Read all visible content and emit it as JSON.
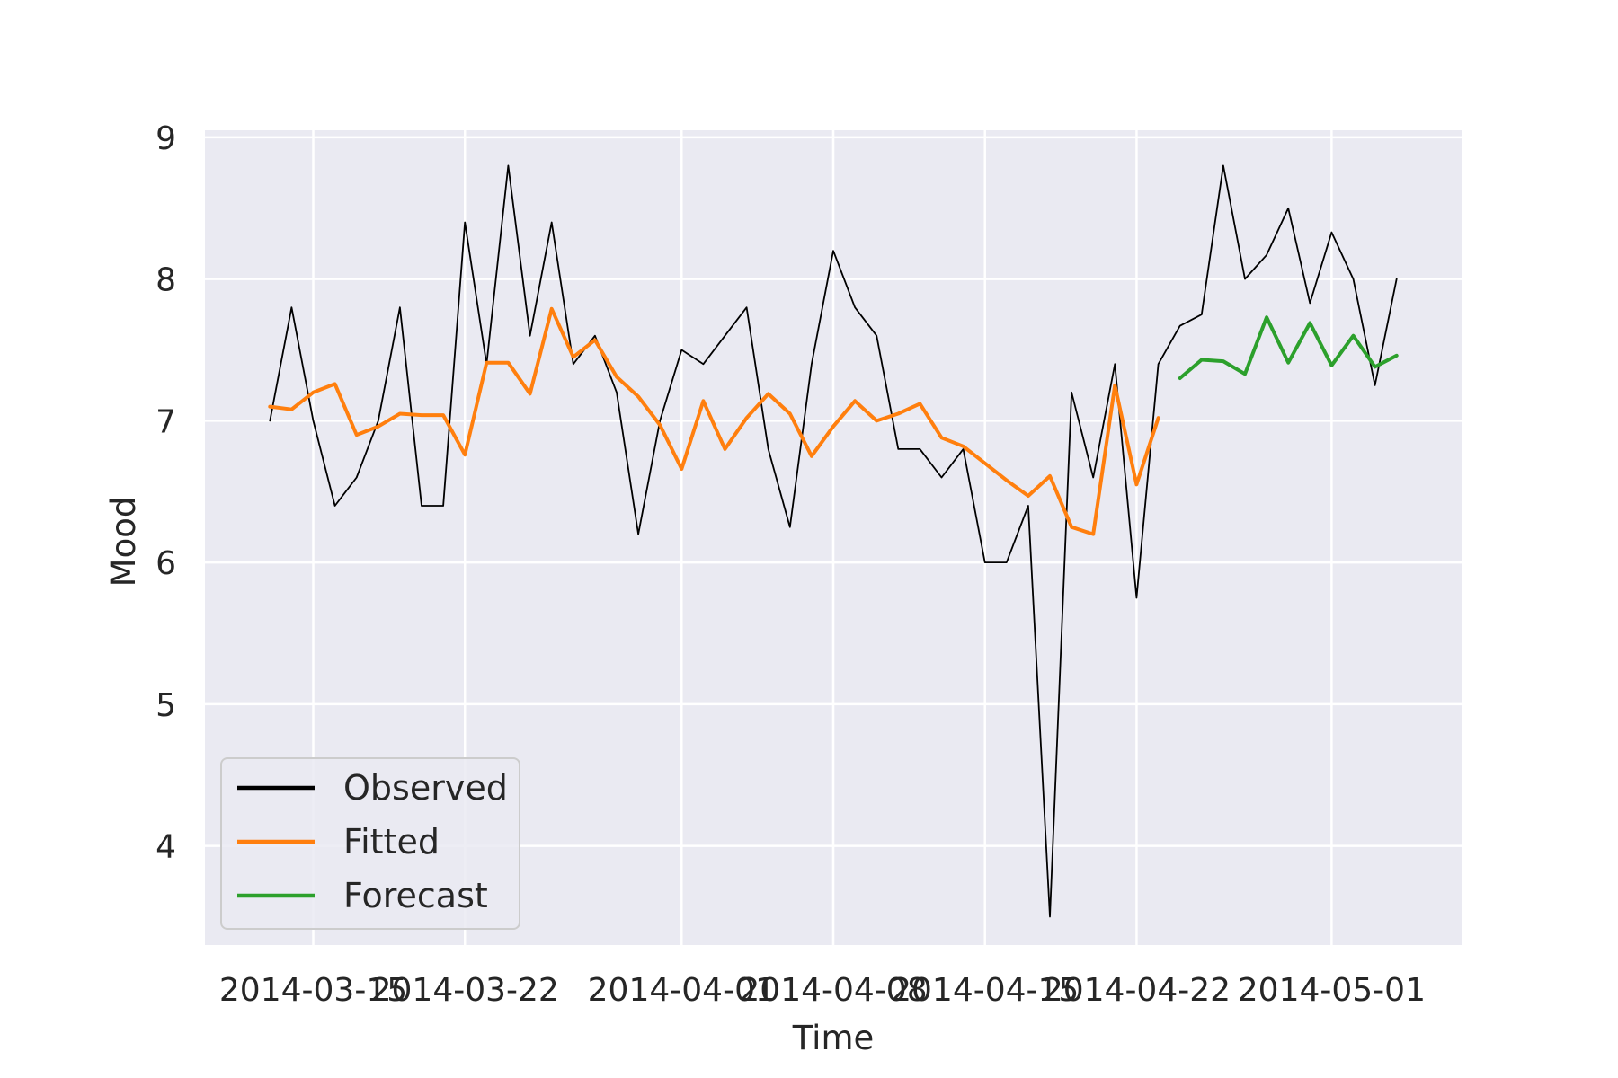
{
  "chart_data": {
    "type": "line",
    "title": "",
    "xlabel": "Time",
    "ylabel": "Mood",
    "x_ticks": [
      "2014-03-15",
      "2014-03-22",
      "2014-04-01",
      "2014-04-08",
      "2014-04-15",
      "2014-04-22",
      "2014-05-01"
    ],
    "y_ticks": [
      "4",
      "5",
      "6",
      "7",
      "8",
      "9"
    ],
    "xlim": [
      "2014-03-10",
      "2014-05-07"
    ],
    "ylim": [
      3.3,
      9.05
    ],
    "grid": true,
    "legend_position": "lower-left",
    "colors": {
      "plot_background": "#eaeaf2",
      "grid": "#ffffff",
      "observed": "#000000",
      "fitted": "#ff7f0e",
      "forecast": "#2ca02c"
    },
    "series": [
      {
        "name": "Observed",
        "x": [
          "2014-03-13",
          "2014-03-14",
          "2014-03-15",
          "2014-03-16",
          "2014-03-17",
          "2014-03-18",
          "2014-03-19",
          "2014-03-20",
          "2014-03-21",
          "2014-03-22",
          "2014-03-23",
          "2014-03-24",
          "2014-03-25",
          "2014-03-26",
          "2014-03-27",
          "2014-03-28",
          "2014-03-29",
          "2014-03-30",
          "2014-03-31",
          "2014-04-01",
          "2014-04-02",
          "2014-04-03",
          "2014-04-04",
          "2014-04-05",
          "2014-04-06",
          "2014-04-07",
          "2014-04-08",
          "2014-04-09",
          "2014-04-10",
          "2014-04-11",
          "2014-04-12",
          "2014-04-13",
          "2014-04-14",
          "2014-04-15",
          "2014-04-16",
          "2014-04-17",
          "2014-04-18",
          "2014-04-19",
          "2014-04-20",
          "2014-04-21",
          "2014-04-22",
          "2014-04-23",
          "2014-04-24",
          "2014-04-25",
          "2014-04-26",
          "2014-04-27",
          "2014-04-28",
          "2014-04-29",
          "2014-04-30",
          "2014-05-01",
          "2014-05-02",
          "2014-05-03",
          "2014-05-04"
        ],
        "y": [
          7.0,
          7.8,
          7.0,
          6.4,
          6.6,
          7.0,
          7.8,
          6.4,
          6.4,
          8.4,
          7.4,
          8.8,
          7.6,
          8.4,
          7.4,
          7.6,
          7.2,
          6.2,
          7.0,
          7.5,
          7.4,
          7.6,
          7.8,
          6.8,
          6.25,
          7.4,
          8.2,
          7.8,
          7.6,
          6.8,
          6.8,
          6.6,
          6.8,
          6.0,
          6.0,
          6.4,
          3.5,
          7.2,
          6.6,
          7.4,
          5.75,
          7.4,
          7.67,
          7.75,
          8.8,
          8.0,
          8.17,
          8.5,
          7.83,
          8.33,
          8.0,
          7.25,
          8.0
        ]
      },
      {
        "name": "Fitted",
        "x": [
          "2014-03-13",
          "2014-03-14",
          "2014-03-15",
          "2014-03-16",
          "2014-03-17",
          "2014-03-18",
          "2014-03-19",
          "2014-03-20",
          "2014-03-21",
          "2014-03-22",
          "2014-03-23",
          "2014-03-24",
          "2014-03-25",
          "2014-03-26",
          "2014-03-27",
          "2014-03-28",
          "2014-03-29",
          "2014-03-30",
          "2014-03-31",
          "2014-04-01",
          "2014-04-02",
          "2014-04-03",
          "2014-04-04",
          "2014-04-05",
          "2014-04-06",
          "2014-04-07",
          "2014-04-08",
          "2014-04-09",
          "2014-04-10",
          "2014-04-11",
          "2014-04-12",
          "2014-04-13",
          "2014-04-14",
          "2014-04-15",
          "2014-04-16",
          "2014-04-17",
          "2014-04-18",
          "2014-04-19",
          "2014-04-20",
          "2014-04-21",
          "2014-04-22",
          "2014-04-23"
        ],
        "y": [
          7.1,
          7.08,
          7.2,
          7.26,
          6.9,
          6.96,
          7.05,
          7.04,
          7.04,
          6.76,
          7.41,
          7.41,
          7.19,
          7.79,
          7.45,
          7.57,
          7.31,
          7.17,
          6.97,
          6.66,
          7.14,
          6.8,
          7.02,
          7.19,
          7.05,
          6.75,
          6.96,
          7.14,
          7.0,
          7.05,
          7.12,
          6.88,
          6.82,
          6.7,
          6.58,
          6.47,
          6.61,
          6.25,
          6.2,
          7.25,
          6.55,
          7.02
        ]
      },
      {
        "name": "Forecast",
        "x": [
          "2014-04-24",
          "2014-04-25",
          "2014-04-26",
          "2014-04-27",
          "2014-04-28",
          "2014-04-29",
          "2014-04-30",
          "2014-05-01",
          "2014-05-02",
          "2014-05-03",
          "2014-05-04"
        ],
        "y": [
          7.3,
          7.43,
          7.42,
          7.33,
          7.73,
          7.41,
          7.69,
          7.39,
          7.6,
          7.38,
          7.46
        ]
      }
    ]
  }
}
